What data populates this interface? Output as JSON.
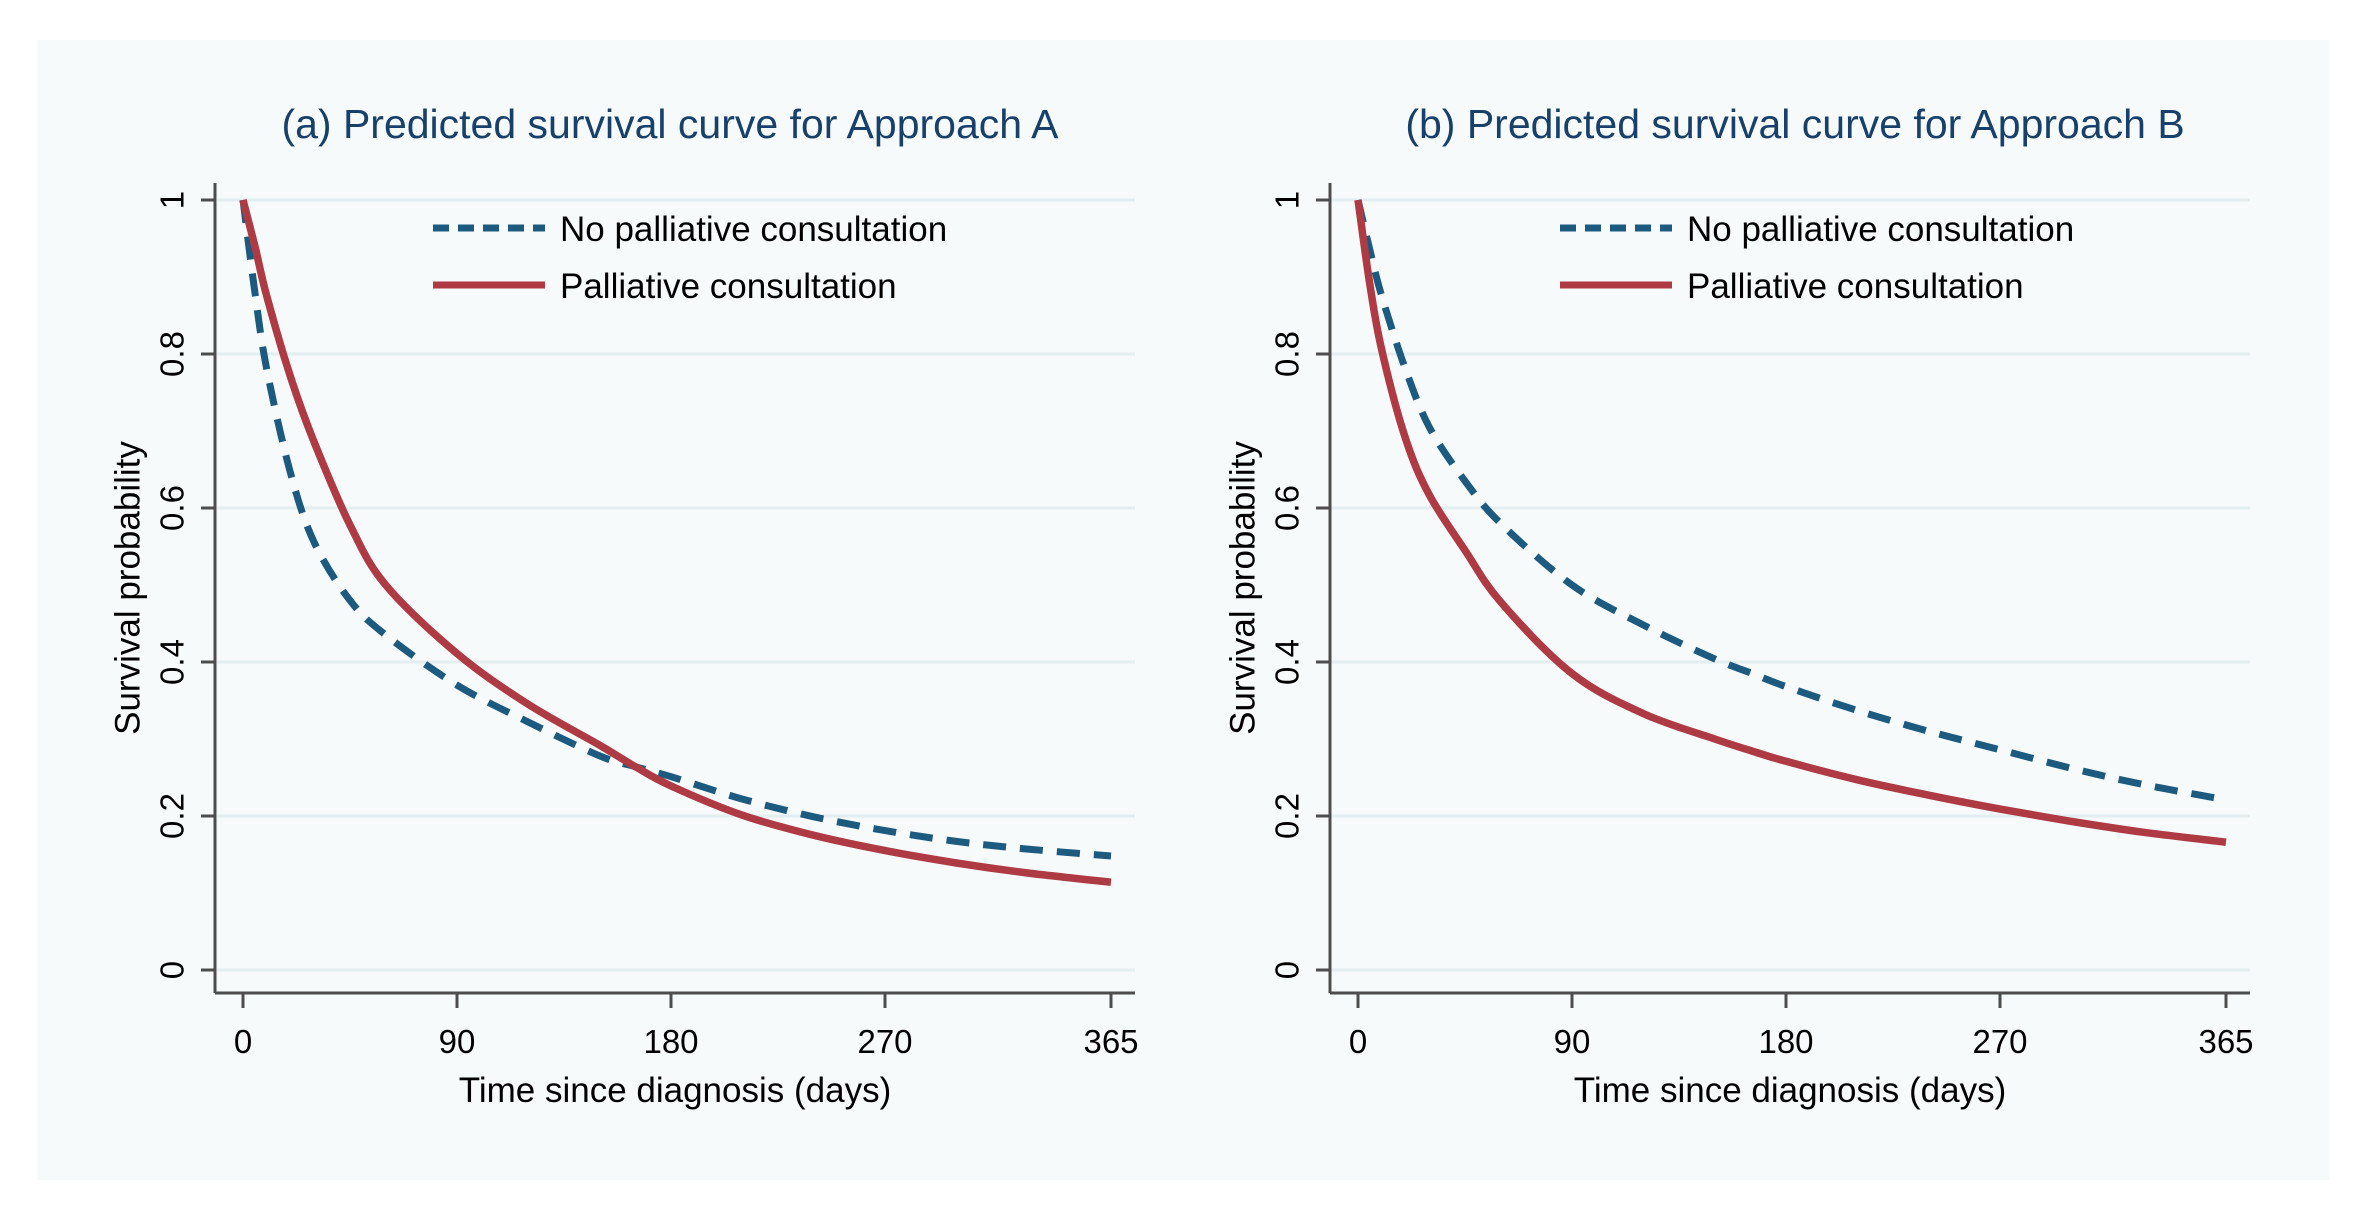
{
  "colors": {
    "title": "#17406b",
    "no_palliative_line": "#1c5a80",
    "palliative_line": "#ae3b44",
    "grid": "#e3eef0",
    "axis": "#4d4d4d",
    "figure_background": "#f7fafb",
    "tick_text": "#000000"
  },
  "chart_data": [
    {
      "type": "line",
      "title": "(a) Predicted survival curve for Approach A",
      "xlabel": "Time since diagnosis (days)",
      "ylabel": "Survival probability",
      "xlim": [
        0,
        365
      ],
      "ylim": [
        0,
        1
      ],
      "x_ticks": [
        0,
        90,
        180,
        270,
        365
      ],
      "x_tick_labels": [
        "0",
        "90",
        "180",
        "270",
        "365"
      ],
      "y_ticks": [
        1,
        0.8,
        0.6,
        0.4,
        0.2,
        0
      ],
      "y_tick_labels": [
        "1",
        "0.8",
        "0.6",
        "0.4",
        "0.2",
        "0"
      ],
      "grid": "horizontal",
      "legend_position": "top-right-inside",
      "x": [
        0,
        5,
        10,
        20,
        30,
        45,
        60,
        90,
        120,
        150,
        165,
        180,
        210,
        240,
        270,
        300,
        330,
        365
      ],
      "series": [
        {
          "name": "No palliative consultation",
          "style": "dashed",
          "color": "#1c5a80",
          "values": [
            1,
            0.88,
            0.78,
            0.645,
            0.555,
            0.48,
            0.435,
            0.37,
            0.322,
            0.278,
            0.264,
            0.251,
            0.222,
            0.199,
            0.181,
            0.167,
            0.157,
            0.148
          ]
        },
        {
          "name": "Palliative consultation",
          "style": "solid",
          "color": "#ae3b44",
          "values": [
            1,
            0.94,
            0.875,
            0.77,
            0.685,
            0.578,
            0.5,
            0.411,
            0.345,
            0.292,
            0.264,
            0.239,
            0.201,
            0.175,
            0.155,
            0.139,
            0.126,
            0.114
          ]
        }
      ],
      "annotations": [
        "curves cross near day 165 at survival 0.26"
      ]
    },
    {
      "type": "line",
      "title": "(b) Predicted survival curve for Approach B",
      "xlabel": "Time since diagnosis (days)",
      "ylabel": "Survival probability",
      "xlim": [
        0,
        365
      ],
      "ylim": [
        0,
        1
      ],
      "x_ticks": [
        0,
        90,
        180,
        270,
        365
      ],
      "x_tick_labels": [
        "0",
        "90",
        "180",
        "270",
        "365"
      ],
      "y_ticks": [
        1,
        0.8,
        0.6,
        0.4,
        0.2,
        0
      ],
      "y_tick_labels": [
        "1",
        "0.8",
        "0.6",
        "0.4",
        "0.2",
        "0"
      ],
      "grid": "horizontal",
      "legend_position": "top-right-inside",
      "x": [
        0,
        5,
        10,
        20,
        30,
        45,
        60,
        90,
        120,
        150,
        165,
        180,
        210,
        240,
        270,
        300,
        330,
        365
      ],
      "series": [
        {
          "name": "No palliative consultation",
          "style": "dashed",
          "color": "#1c5a80",
          "values": [
            1,
            0.935,
            0.875,
            0.78,
            0.705,
            0.635,
            0.58,
            0.5,
            0.448,
            0.404,
            0.386,
            0.368,
            0.337,
            0.31,
            0.286,
            0.262,
            0.241,
            0.221
          ]
        },
        {
          "name": "Palliative consultation",
          "style": "solid",
          "color": "#ae3b44",
          "values": [
            1,
            0.89,
            0.805,
            0.69,
            0.617,
            0.545,
            0.478,
            0.385,
            0.333,
            0.3,
            0.285,
            0.271,
            0.247,
            0.227,
            0.209,
            0.193,
            0.179,
            0.166
          ]
        }
      ],
      "annotations": [
        "dashed curve stays above solid curve for all times"
      ]
    }
  ]
}
